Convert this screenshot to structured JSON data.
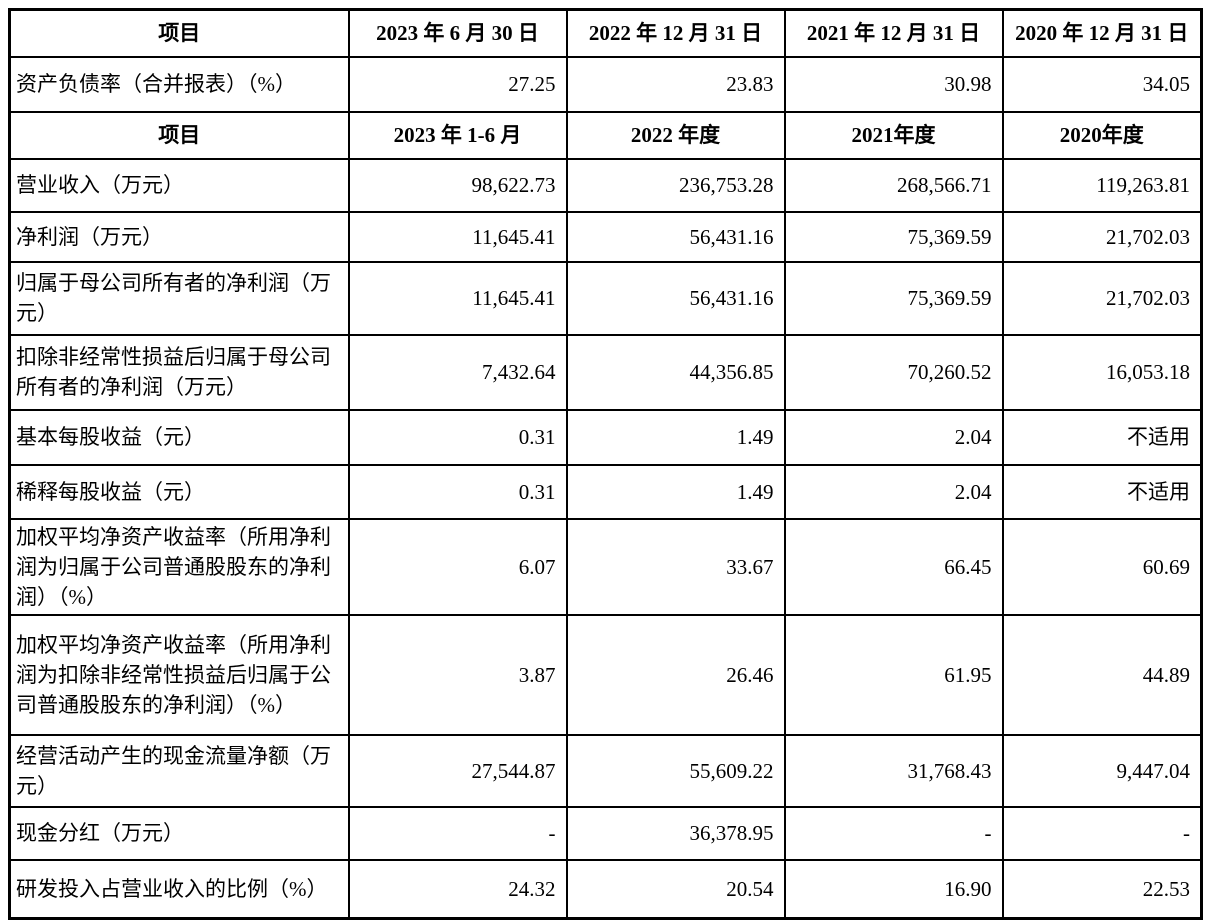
{
  "colors": {
    "background": "#ffffff",
    "text": "#000000",
    "grid_border": "#000000"
  },
  "table": {
    "sections": [
      {
        "headers": [
          "项目",
          "2023 年 6 月 30 日",
          "2022 年 12 月 31 日",
          "2021 年 12 月 31 日",
          "2020 年 12 月 31 日"
        ],
        "rows": [
          {
            "label": "资产负债率（合并报表）（%）",
            "values": [
              "27.25",
              "23.83",
              "30.98",
              "34.05"
            ]
          }
        ]
      },
      {
        "headers": [
          "项目",
          "2023 年 1-6 月",
          "2022 年度",
          "2021年度",
          "2020年度"
        ],
        "rows": [
          {
            "label": "营业收入（万元）",
            "values": [
              "98,622.73",
              "236,753.28",
              "268,566.71",
              "119,263.81"
            ]
          },
          {
            "label": "净利润（万元）",
            "values": [
              "11,645.41",
              "56,431.16",
              "75,369.59",
              "21,702.03"
            ]
          },
          {
            "label": "归属于母公司所有者的净利润（万元）",
            "values": [
              "11,645.41",
              "56,431.16",
              "75,369.59",
              "21,702.03"
            ]
          },
          {
            "label": "扣除非经常性损益后归属于母公司所有者的净利润（万元）",
            "values": [
              "7,432.64",
              "44,356.85",
              "70,260.52",
              "16,053.18"
            ]
          },
          {
            "label": "基本每股收益（元）",
            "values": [
              "0.31",
              "1.49",
              "2.04",
              "不适用"
            ]
          },
          {
            "label": "稀释每股收益（元）",
            "values": [
              "0.31",
              "1.49",
              "2.04",
              "不适用"
            ]
          },
          {
            "label": "加权平均净资产收益率（所用净利润为归属于公司普通股股东的净利润）（%）",
            "values": [
              "6.07",
              "33.67",
              "66.45",
              "60.69"
            ]
          },
          {
            "label": "加权平均净资产收益率（所用净利润为扣除非经常性损益后归属于公司普通股股东的净利润）（%）",
            "values": [
              "3.87",
              "26.46",
              "61.95",
              "44.89"
            ]
          },
          {
            "label": "经营活动产生的现金流量净额（万元）",
            "values": [
              "27,544.87",
              "55,609.22",
              "31,768.43",
              "9,447.04"
            ]
          },
          {
            "label": "现金分红（万元）",
            "values": [
              "-",
              "36,378.95",
              "-",
              "-"
            ]
          },
          {
            "label": "研发投入占营业收入的比例（%）",
            "values": [
              "24.32",
              "20.54",
              "16.90",
              "22.53"
            ]
          }
        ]
      }
    ]
  }
}
